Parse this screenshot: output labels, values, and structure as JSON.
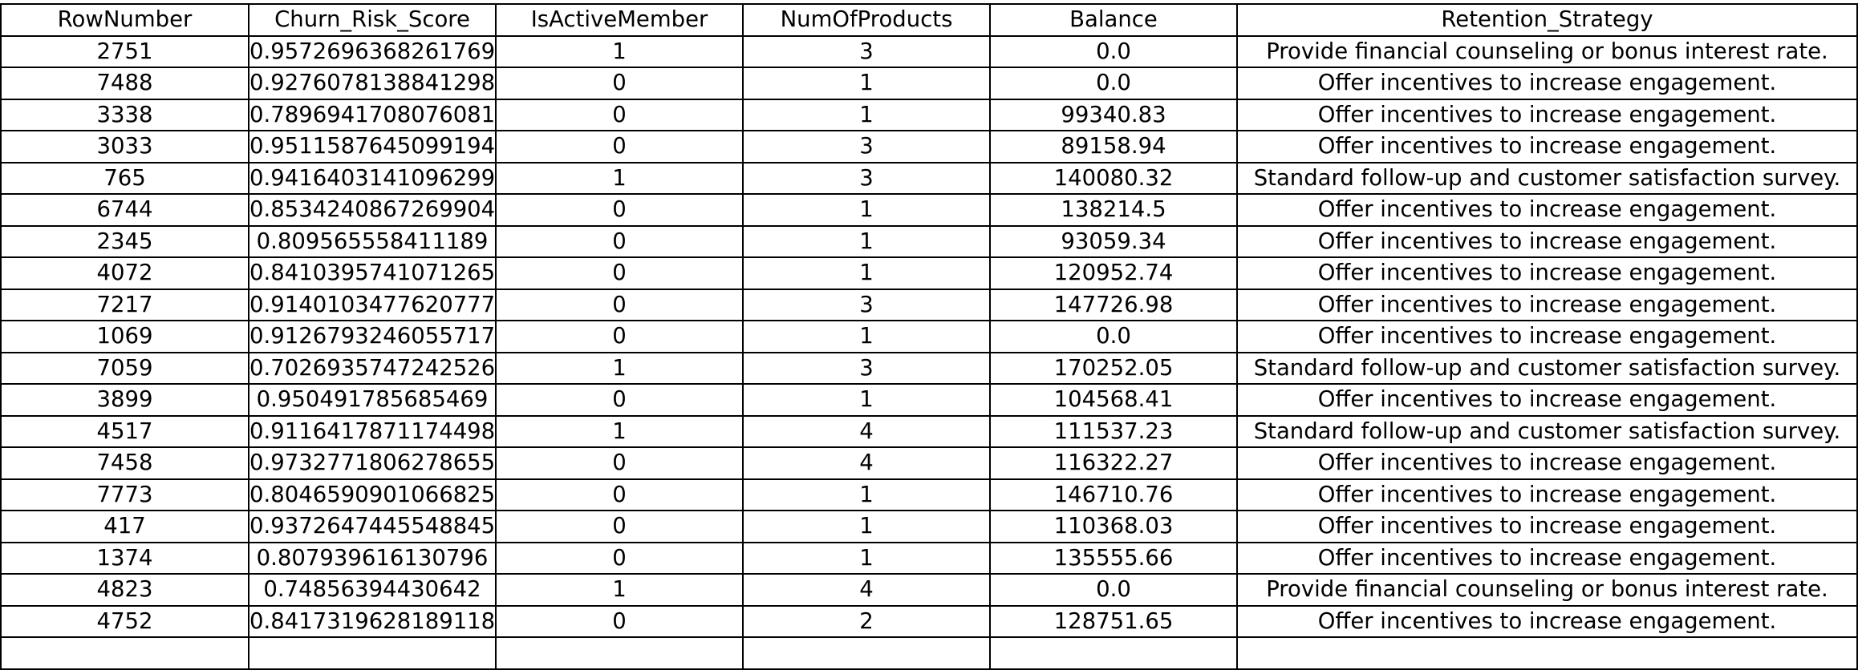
{
  "chart_data": {
    "type": "table",
    "columns": [
      "RowNumber",
      "Churn_Risk_Score",
      "IsActiveMember",
      "NumOfProducts",
      "Balance",
      "Retention_Strategy"
    ],
    "rows": [
      [
        "2751",
        "0.9572696368261769",
        "1",
        "3",
        "0.0",
        "Provide financial counseling or bonus interest rate."
      ],
      [
        "7488",
        "0.9276078138841298",
        "0",
        "1",
        "0.0",
        "Offer incentives to increase engagement."
      ],
      [
        "3338",
        "0.7896941708076081",
        "0",
        "1",
        "99340.83",
        "Offer incentives to increase engagement."
      ],
      [
        "3033",
        "0.9511587645099194",
        "0",
        "3",
        "89158.94",
        "Offer incentives to increase engagement."
      ],
      [
        "765",
        "0.9416403141096299",
        "1",
        "3",
        "140080.32",
        "Standard follow-up and customer satisfaction survey."
      ],
      [
        "6744",
        "0.8534240867269904",
        "0",
        "1",
        "138214.5",
        "Offer incentives to increase engagement."
      ],
      [
        "2345",
        "0.809565558411189",
        "0",
        "1",
        "93059.34",
        "Offer incentives to increase engagement."
      ],
      [
        "4072",
        "0.8410395741071265",
        "0",
        "1",
        "120952.74",
        "Offer incentives to increase engagement."
      ],
      [
        "7217",
        "0.9140103477620777",
        "0",
        "3",
        "147726.98",
        "Offer incentives to increase engagement."
      ],
      [
        "1069",
        "0.9126793246055717",
        "0",
        "1",
        "0.0",
        "Offer incentives to increase engagement."
      ],
      [
        "7059",
        "0.7026935747242526",
        "1",
        "3",
        "170252.05",
        "Standard follow-up and customer satisfaction survey."
      ],
      [
        "3899",
        "0.950491785685469",
        "0",
        "1",
        "104568.41",
        "Offer incentives to increase engagement."
      ],
      [
        "4517",
        "0.9116417871174498",
        "1",
        "4",
        "111537.23",
        "Standard follow-up and customer satisfaction survey."
      ],
      [
        "7458",
        "0.9732771806278655",
        "0",
        "4",
        "116322.27",
        "Offer incentives to increase engagement."
      ],
      [
        "7773",
        "0.8046590901066825",
        "0",
        "1",
        "146710.76",
        "Offer incentives to increase engagement."
      ],
      [
        "417",
        "0.9372647445548845",
        "0",
        "1",
        "110368.03",
        "Offer incentives to increase engagement."
      ],
      [
        "1374",
        "0.807939616130796",
        "0",
        "1",
        "135555.66",
        "Offer incentives to increase engagement."
      ],
      [
        "4823",
        "0.74856394430642",
        "1",
        "4",
        "0.0",
        "Provide financial counseling or bonus interest rate."
      ],
      [
        "4752",
        "0.8417319628189118",
        "0",
        "2",
        "128751.65",
        "Offer incentives to increase engagement."
      ],
      [
        "",
        "",
        "",
        "",
        "",
        ""
      ]
    ]
  }
}
